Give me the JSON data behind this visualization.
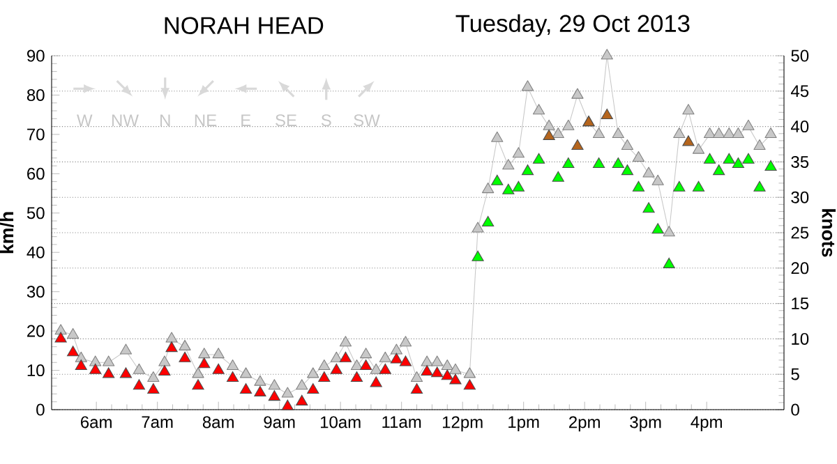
{
  "chart_data": {
    "type": "line",
    "title": "NORAH HEAD",
    "subtitle": "Tuesday, 29 Oct 2013",
    "ylabel": "km/h",
    "y2label": "knots",
    "x": [
      "2013-10-29T05:25",
      "2013-10-29T05:37",
      "2013-10-29T05:45",
      "2013-10-29T05:59",
      "2013-10-29T06:12",
      "2013-10-29T06:29",
      "2013-10-29T06:42",
      "2013-10-29T06:56",
      "2013-10-29T07:07",
      "2013-10-29T07:14",
      "2013-10-29T07:27",
      "2013-10-29T07:40",
      "2013-10-29T07:46",
      "2013-10-29T08:00",
      "2013-10-29T08:14",
      "2013-10-29T08:27",
      "2013-10-29T08:41",
      "2013-10-29T08:55",
      "2013-10-29T09:08",
      "2013-10-29T09:22",
      "2013-10-29T09:33",
      "2013-10-29T09:44",
      "2013-10-29T09:56",
      "2013-10-29T10:05",
      "2013-10-29T10:16",
      "2013-10-29T10:25",
      "2013-10-29T10:35",
      "2013-10-29T10:44",
      "2013-10-29T10:55",
      "2013-10-29T11:04",
      "2013-10-29T11:15",
      "2013-10-29T11:25",
      "2013-10-29T11:35",
      "2013-10-29T11:45",
      "2013-10-29T11:53",
      "2013-10-29T12:07",
      "2013-10-29T12:15",
      "2013-10-29T12:25",
      "2013-10-29T12:34",
      "2013-10-29T12:45",
      "2013-10-29T12:55",
      "2013-10-29T13:04",
      "2013-10-29T13:15",
      "2013-10-29T13:25",
      "2013-10-29T13:34",
      "2013-10-29T13:44",
      "2013-10-29T13:53",
      "2013-10-29T14:04",
      "2013-10-29T14:14",
      "2013-10-29T14:22",
      "2013-10-29T14:33",
      "2013-10-29T14:42",
      "2013-10-29T14:53",
      "2013-10-29T15:03",
      "2013-10-29T15:12",
      "2013-10-29T15:23",
      "2013-10-29T15:33",
      "2013-10-29T15:42",
      "2013-10-29T15:52",
      "2013-10-29T16:03",
      "2013-10-29T16:12",
      "2013-10-29T16:22",
      "2013-10-29T16:31",
      "2013-10-29T16:41",
      "2013-10-29T16:52",
      "2013-10-29T17:03"
    ],
    "series": [
      {
        "color": "#c8c8c8",
        "marker": "triangle",
        "values": [
          20,
          19,
          13,
          12,
          12,
          15,
          10,
          8,
          12,
          18,
          16,
          9,
          14,
          14,
          11,
          9,
          7,
          6,
          4,
          6,
          9,
          11,
          13,
          17,
          11,
          14,
          10,
          13,
          15,
          17,
          8,
          12,
          12,
          11,
          10,
          9,
          46,
          56,
          69,
          62,
          65,
          82,
          76,
          72,
          70,
          72,
          80,
          73,
          70,
          90,
          70,
          67,
          64,
          60,
          58,
          45,
          70,
          76,
          66,
          70,
          70,
          70,
          70,
          72,
          67,
          70
        ]
      },
      {
        "type": "scatter",
        "marker": "triangle",
        "values": [
          18,
          14.5,
          11,
          10,
          9,
          9,
          6,
          5,
          9.6,
          15.6,
          13,
          6,
          11.5,
          10,
          8,
          5,
          4.3,
          3.2,
          0.8,
          2,
          5,
          8,
          10,
          13,
          8,
          11,
          6.7,
          10,
          12.7,
          12,
          5,
          9.6,
          9.2,
          8.5,
          7.4,
          6,
          38.7,
          47.5,
          58,
          55.7,
          56.4,
          60.6,
          63.5,
          69.5,
          58.9,
          62.4,
          67,
          73,
          62.4,
          74.8,
          62.4,
          60.6,
          56.4,
          51,
          45.7,
          36.9,
          56.4,
          68,
          56.4,
          63.5,
          60.6,
          63.5,
          62.4,
          63.5,
          56.4,
          61.7
        ],
        "colors": [
          "#ff0000",
          "#ff0000",
          "#ff0000",
          "#ff0000",
          "#ff0000",
          "#ff0000",
          "#ff0000",
          "#ff0000",
          "#ff0000",
          "#ff0000",
          "#ff0000",
          "#ff0000",
          "#ff0000",
          "#ff0000",
          "#ff0000",
          "#ff0000",
          "#ff0000",
          "#ff0000",
          "#ff0000",
          "#ff0000",
          "#ff0000",
          "#ff0000",
          "#ff0000",
          "#ff0000",
          "#ff0000",
          "#ff0000",
          "#ff0000",
          "#ff0000",
          "#ff0000",
          "#ff0000",
          "#ff0000",
          "#ff0000",
          "#ff0000",
          "#ff0000",
          "#ff0000",
          "#ff0000",
          "#00ff00",
          "#00ff00",
          "#00ff00",
          "#00ff00",
          "#00ff00",
          "#00ff00",
          "#00ff00",
          "#b5651d",
          "#00ff00",
          "#00ff00",
          "#b5651d",
          "#b5651d",
          "#00ff00",
          "#b5651d",
          "#00ff00",
          "#00ff00",
          "#00ff00",
          "#00ff00",
          "#00ff00",
          "#00ff00",
          "#00ff00",
          "#b5651d",
          "#00ff00",
          "#00ff00",
          "#00ff00",
          "#00ff00",
          "#00ff00",
          "#00ff00",
          "#00ff00",
          "#00ff00"
        ]
      }
    ],
    "xlim": [
      "2013-10-29T05:16",
      "2013-10-29T17:16"
    ],
    "xticks": [
      {
        "value": "2013-10-29T06:00",
        "label": "6am"
      },
      {
        "value": "2013-10-29T07:00",
        "label": "7am"
      },
      {
        "value": "2013-10-29T08:00",
        "label": "8am"
      },
      {
        "value": "2013-10-29T09:00",
        "label": "9am"
      },
      {
        "value": "2013-10-29T10:00",
        "label": "10am"
      },
      {
        "value": "2013-10-29T11:00",
        "label": "11am"
      },
      {
        "value": "2013-10-29T12:00",
        "label": "12pm"
      },
      {
        "value": "2013-10-29T13:00",
        "label": "1pm"
      },
      {
        "value": "2013-10-29T14:00",
        "label": "2pm"
      },
      {
        "value": "2013-10-29T15:00",
        "label": "3pm"
      },
      {
        "value": "2013-10-29T16:00",
        "label": "4pm"
      }
    ],
    "ylim": [
      0,
      90
    ],
    "yticks": [
      0,
      10,
      20,
      30,
      40,
      50,
      60,
      70,
      80,
      90
    ],
    "y2lim": [
      0,
      50
    ],
    "y2ticks": [
      0,
      5,
      10,
      15,
      20,
      25,
      30,
      35,
      40,
      45,
      50
    ],
    "grid": "y2",
    "annotations": [
      "W",
      "NW",
      "N",
      "NE",
      "E",
      "SE",
      "S",
      "SW"
    ]
  }
}
